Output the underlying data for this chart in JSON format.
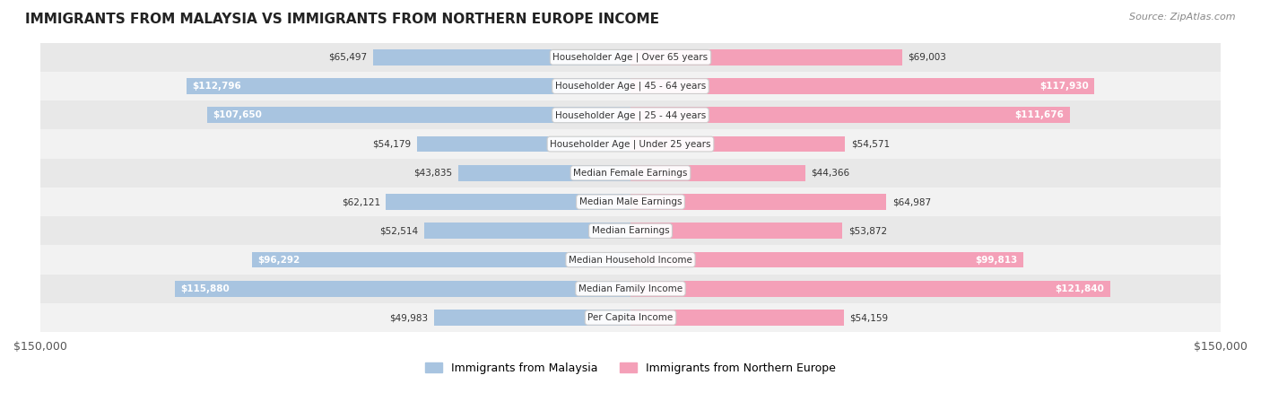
{
  "title": "IMMIGRANTS FROM MALAYSIA VS IMMIGRANTS FROM NORTHERN EUROPE INCOME",
  "source": "Source: ZipAtlas.com",
  "categories": [
    "Per Capita Income",
    "Median Family Income",
    "Median Household Income",
    "Median Earnings",
    "Median Male Earnings",
    "Median Female Earnings",
    "Householder Age | Under 25 years",
    "Householder Age | 25 - 44 years",
    "Householder Age | 45 - 64 years",
    "Householder Age | Over 65 years"
  ],
  "malaysia_values": [
    49983,
    115880,
    96292,
    52514,
    62121,
    43835,
    54179,
    107650,
    112796,
    65497
  ],
  "northern_europe_values": [
    54159,
    121840,
    99813,
    53872,
    64987,
    44366,
    54571,
    111676,
    117930,
    69003
  ],
  "malaysia_labels": [
    "$49,983",
    "$115,880",
    "$96,292",
    "$52,514",
    "$62,121",
    "$43,835",
    "$54,179",
    "$107,650",
    "$112,796",
    "$65,497"
  ],
  "northern_europe_labels": [
    "$54,159",
    "$121,840",
    "$99,813",
    "$53,872",
    "$64,987",
    "$44,366",
    "$54,571",
    "$111,676",
    "$117,930",
    "$69,003"
  ],
  "malaysia_color": "#a8c4e0",
  "northern_europe_color": "#f4a0b8",
  "malaysia_label_color_threshold": 80000,
  "max_value": 150000,
  "legend_malaysia": "Immigrants from Malaysia",
  "legend_northern_europe": "Immigrants from Northern Europe",
  "background_color": "#f5f5f5",
  "row_background": "#f0f0f0",
  "row_background_alt": "#e8e8e8"
}
